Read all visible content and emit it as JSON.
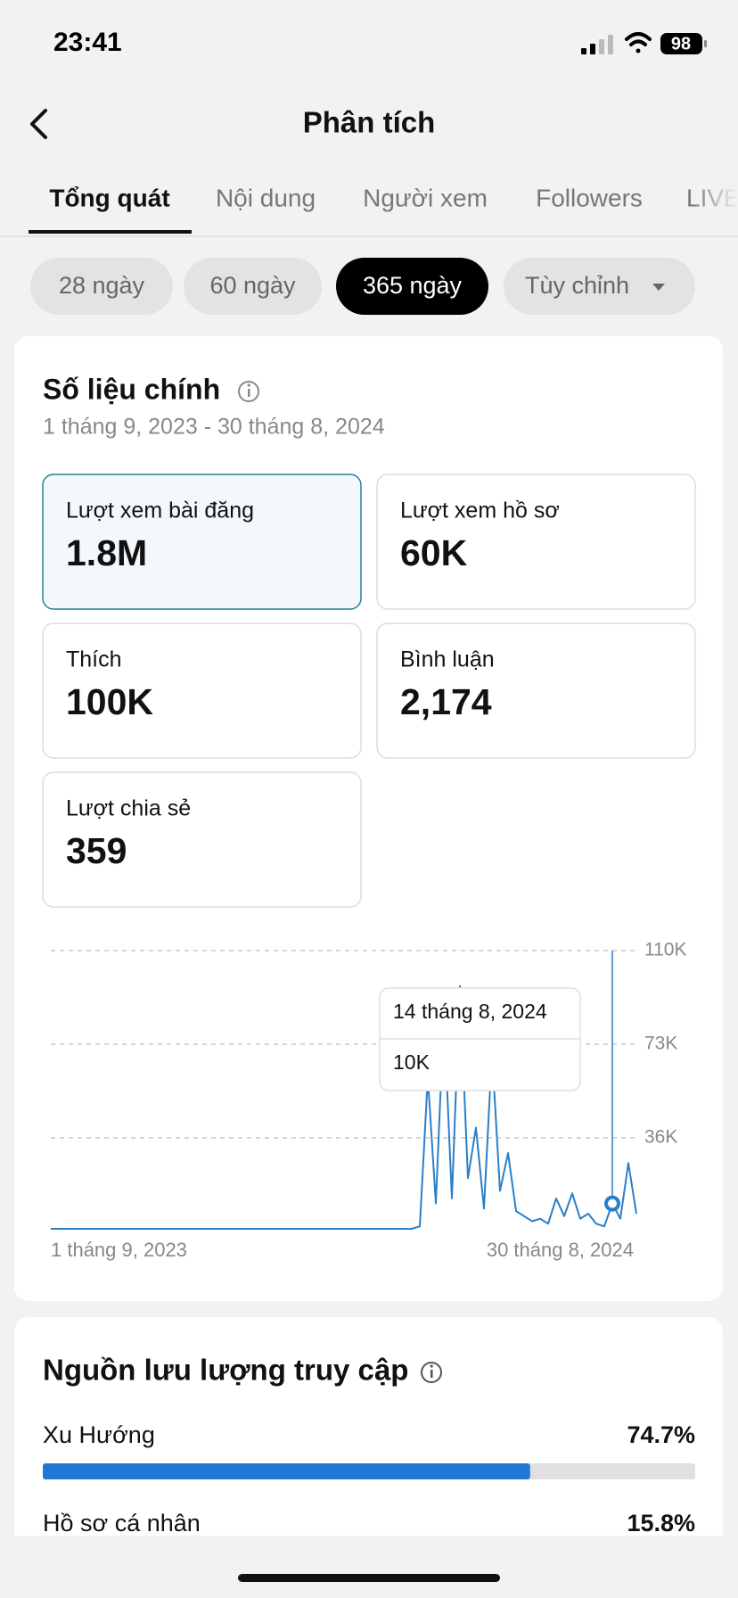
{
  "status_bar": {
    "time": "23:41",
    "battery": "98"
  },
  "header": {
    "title": "Phân tích"
  },
  "tabs": [
    "Tổng quát",
    "Nội dung",
    "Người xem",
    "Followers",
    "LIVE"
  ],
  "ranges": [
    "28 ngày",
    "60 ngày",
    "365 ngày",
    "Tùy chỉnh"
  ],
  "key_metrics": {
    "title": "Số liệu chính",
    "date_range": "1 tháng 9, 2023 - 30 tháng 8, 2024",
    "items": [
      {
        "label": "Lượt xem bài đăng",
        "value": "1.8M"
      },
      {
        "label": "Lượt xem hồ sơ",
        "value": "60K"
      },
      {
        "label": "Thích",
        "value": "100K"
      },
      {
        "label": "Bình luận",
        "value": "2,174"
      },
      {
        "label": "Lượt chia sẻ",
        "value": "359"
      }
    ]
  },
  "chart_data": {
    "type": "line",
    "color": "#2a7fc9",
    "x_labels": [
      "1 tháng 9, 2023",
      "30 tháng 8, 2024"
    ],
    "values": [
      0,
      0,
      0,
      0,
      0,
      0,
      0,
      0,
      0,
      0,
      0,
      0,
      0,
      0,
      0,
      0,
      0,
      0,
      0,
      0,
      0,
      0,
      0,
      0,
      0,
      0,
      0,
      0,
      0,
      0,
      0,
      0,
      0,
      0,
      0,
      0,
      0,
      0,
      0,
      0,
      0,
      0,
      0,
      0,
      0,
      0,
      1000,
      60000,
      10000,
      85000,
      12000,
      96000,
      20000,
      40000,
      8000,
      70000,
      15000,
      30000,
      7000,
      5000,
      3000,
      4000,
      2000,
      12000,
      5000,
      14000,
      4000,
      6000,
      2000,
      1000,
      10000,
      4000,
      26000,
      6000
    ],
    "ylim": [
      0,
      110000
    ],
    "yticks": [
      {
        "value": 36000,
        "label": "36K"
      },
      {
        "value": 73000,
        "label": "73K"
      },
      {
        "value": 110000,
        "label": "110K"
      }
    ],
    "grid": true,
    "tooltip": {
      "date": "14 tháng 8, 2024",
      "value": 10000,
      "label": "10K",
      "index": 70
    }
  },
  "traffic": {
    "title": "Nguồn lưu lượng truy cập",
    "items": [
      {
        "name": "Xu Hướng",
        "value": 74.7,
        "label": "74.7%"
      },
      {
        "name": "Hồ sơ cá nhân",
        "value": 15.8,
        "label": "15.8%"
      }
    ]
  }
}
